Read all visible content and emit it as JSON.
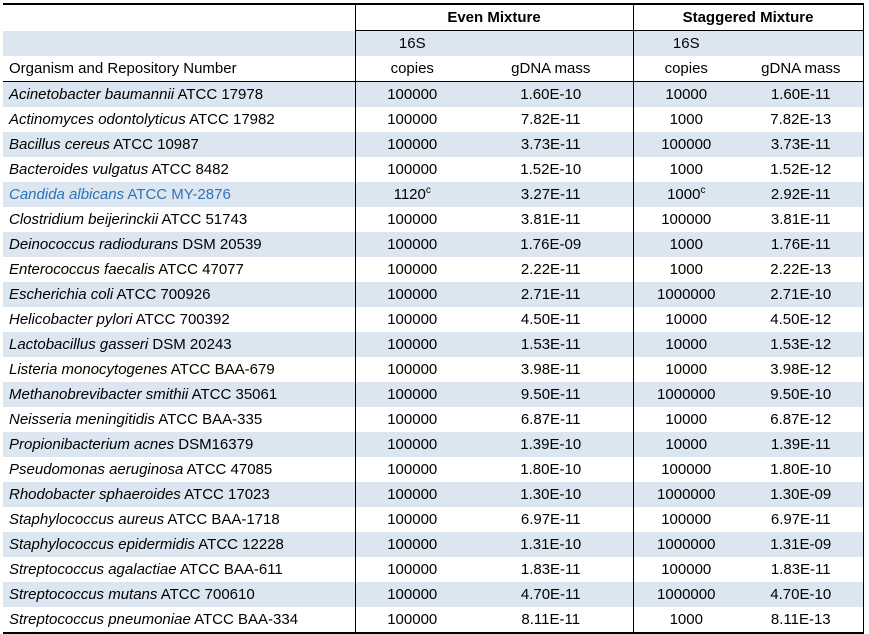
{
  "table": {
    "groups": [
      "Even Mixture",
      "Staggered Mixture"
    ],
    "s16_label": "16S",
    "organism_header": "Organism and Repository Number",
    "copies_header": "copies",
    "gdna_header": "gDNA mass",
    "rows": [
      {
        "name": "Acinetobacter baumannii",
        "strain": "ATCC 17978",
        "even_copies": "100000",
        "even_gdna": "1.60E-10",
        "stag_copies": "10000",
        "stag_gdna": "1.60E-11"
      },
      {
        "name": "Actinomyces odontolyticus",
        "strain": "ATCC 17982",
        "even_copies": "100000",
        "even_gdna": "7.82E-11",
        "stag_copies": "1000",
        "stag_gdna": "7.82E-13"
      },
      {
        "name": "Bacillus cereus",
        "strain": "ATCC 10987",
        "even_copies": "100000",
        "even_gdna": "3.73E-11",
        "stag_copies": "100000",
        "stag_gdna": "3.73E-11"
      },
      {
        "name": "Bacteroides vulgatus",
        "strain": "ATCC 8482",
        "even_copies": "100000",
        "even_gdna": "1.52E-10",
        "stag_copies": "1000",
        "stag_gdna": "1.52E-12"
      },
      {
        "name": "Candida albicans",
        "strain": "ATCC MY-2876",
        "even_copies": "1120",
        "even_sup": "c",
        "even_gdna": "3.27E-11",
        "stag_copies": "1000",
        "stag_sup": "c",
        "stag_gdna": "2.92E-11",
        "blue": true
      },
      {
        "name": "Clostridium beijerinckii",
        "strain": "ATCC 51743",
        "even_copies": "100000",
        "even_gdna": "3.81E-11",
        "stag_copies": "100000",
        "stag_gdna": "3.81E-11"
      },
      {
        "name": "Deinococcus radiodurans",
        "strain": "DSM 20539",
        "even_copies": "100000",
        "even_gdna": "1.76E-09",
        "stag_copies": "1000",
        "stag_gdna": "1.76E-11"
      },
      {
        "name": "Enterococcus faecalis",
        "strain": "ATCC 47077",
        "even_copies": "100000",
        "even_gdna": "2.22E-11",
        "stag_copies": "1000",
        "stag_gdna": "2.22E-13"
      },
      {
        "name": "Escherichia coli",
        "strain": "ATCC 700926",
        "even_copies": "100000",
        "even_gdna": "2.71E-11",
        "stag_copies": "1000000",
        "stag_gdna": "2.71E-10"
      },
      {
        "name": "Helicobacter pylori",
        "strain": "ATCC 700392",
        "even_copies": "100000",
        "even_gdna": "4.50E-11",
        "stag_copies": "10000",
        "stag_gdna": "4.50E-12"
      },
      {
        "name": "Lactobacillus gasseri",
        "strain": "DSM 20243",
        "even_copies": "100000",
        "even_gdna": "1.53E-11",
        "stag_copies": "10000",
        "stag_gdna": "1.53E-12"
      },
      {
        "name": "Listeria monocytogenes",
        "strain": "ATCC BAA-679",
        "even_copies": "100000",
        "even_gdna": "3.98E-11",
        "stag_copies": "10000",
        "stag_gdna": "3.98E-12"
      },
      {
        "name": "Methanobrevibacter smithii",
        "strain": "ATCC 35061",
        "even_copies": "100000",
        "even_gdna": "9.50E-11",
        "stag_copies": "1000000",
        "stag_gdna": "9.50E-10"
      },
      {
        "name": "Neisseria meningitidis",
        "strain": "ATCC BAA-335",
        "even_copies": "100000",
        "even_gdna": "6.87E-11",
        "stag_copies": "10000",
        "stag_gdna": "6.87E-12"
      },
      {
        "name": "Propionibacterium acnes",
        "strain": "DSM16379",
        "even_copies": "100000",
        "even_gdna": "1.39E-10",
        "stag_copies": "10000",
        "stag_gdna": "1.39E-11"
      },
      {
        "name": "Pseudomonas aeruginosa",
        "strain": "ATCC 47085",
        "even_copies": "100000",
        "even_gdna": "1.80E-10",
        "stag_copies": "100000",
        "stag_gdna": "1.80E-10"
      },
      {
        "name": "Rhodobacter sphaeroides",
        "strain": "ATCC 17023",
        "even_copies": "100000",
        "even_gdna": "1.30E-10",
        "stag_copies": "1000000",
        "stag_gdna": "1.30E-09"
      },
      {
        "name": "Staphylococcus aureus",
        "strain": "ATCC BAA-1718",
        "even_copies": "100000",
        "even_gdna": "6.97E-11",
        "stag_copies": "100000",
        "stag_gdna": "6.97E-11"
      },
      {
        "name": "Staphylococcus epidermidis",
        "strain": "ATCC 12228",
        "even_copies": "100000",
        "even_gdna": "1.31E-10",
        "stag_copies": "1000000",
        "stag_gdna": "1.31E-09"
      },
      {
        "name": "Streptococcus agalactiae",
        "strain": "ATCC BAA-611",
        "even_copies": "100000",
        "even_gdna": "1.83E-11",
        "stag_copies": "100000",
        "stag_gdna": "1.83E-11"
      },
      {
        "name": "Streptococcus mutans",
        "strain": "ATCC 700610",
        "even_copies": "100000",
        "even_gdna": "4.70E-11",
        "stag_copies": "1000000",
        "stag_gdna": "4.70E-10"
      },
      {
        "name": "Streptococcus pneumoniae",
        "strain": "ATCC BAA-334",
        "even_copies": "100000",
        "even_gdna": "8.11E-11",
        "stag_copies": "1000",
        "stag_gdna": "8.11E-13"
      }
    ]
  },
  "colors": {
    "row_band": "#DCE6F1",
    "highlight_text": "#2E74B5",
    "border": "#000000"
  }
}
